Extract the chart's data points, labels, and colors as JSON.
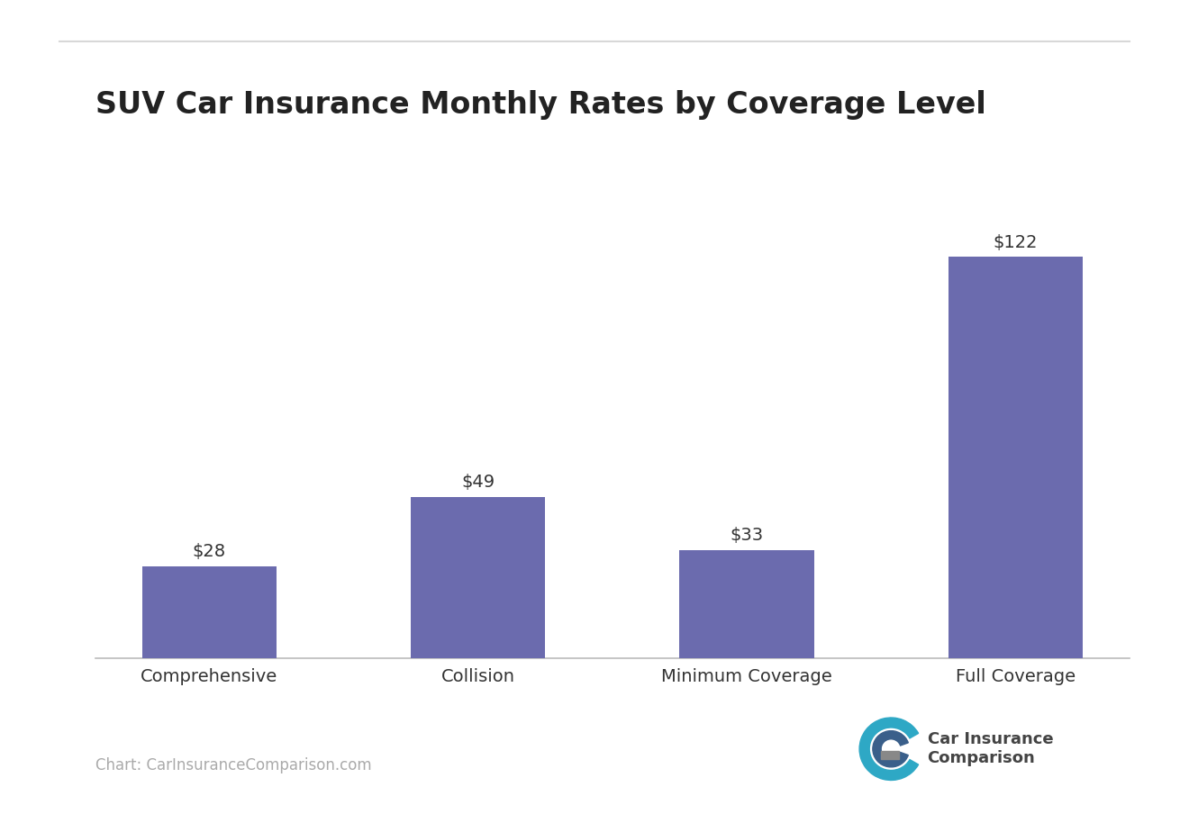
{
  "title": "SUV Car Insurance Monthly Rates by Coverage Level",
  "categories": [
    "Comprehensive",
    "Collision",
    "Minimum Coverage",
    "Full Coverage"
  ],
  "values": [
    28,
    49,
    33,
    122
  ],
  "bar_color": "#6B6BAE",
  "background_color": "#ffffff",
  "title_fontsize": 24,
  "label_fontsize": 14,
  "annotation_fontsize": 14,
  "ylim_max": 145,
  "grid_color": "#d8d8d8",
  "source_text": "Chart: CarInsuranceComparison.com",
  "source_fontsize": 12,
  "source_color": "#aaaaaa",
  "top_line_color": "#d8d8d8",
  "axis_label_color": "#333333",
  "title_color": "#222222",
  "logo_text_line1": "Car Insurance",
  "logo_text_line2": "Comparison",
  "logo_fontsize": 13
}
